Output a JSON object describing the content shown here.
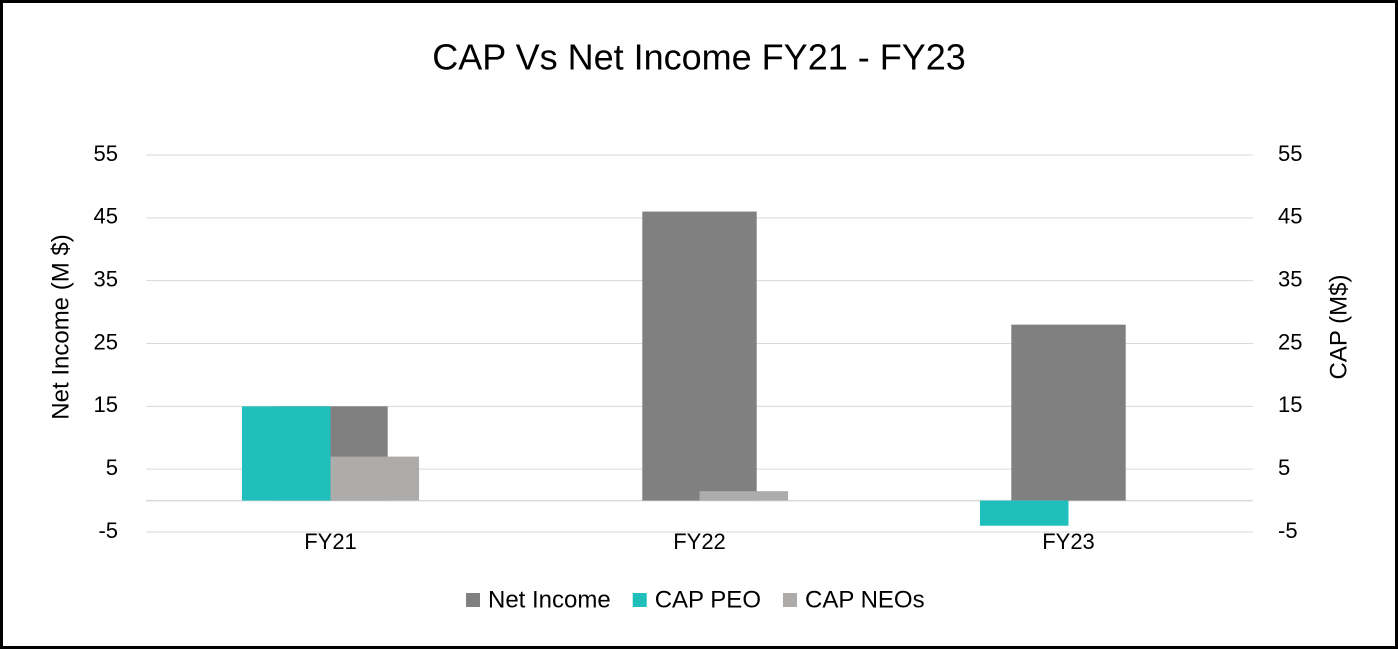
{
  "chart_data": {
    "type": "bar",
    "title": "CAP Vs Net Income FY21 - FY23",
    "y_label": "Net Income (M $)",
    "y2_label": "CAP (M$)",
    "categories": [
      "FY21",
      "FY22",
      "FY23"
    ],
    "series": [
      {
        "name": "Net Income",
        "color": "#808080",
        "values": [
          15,
          46,
          28
        ]
      },
      {
        "name": "CAP PEO",
        "color": "#1fbfbc",
        "values": [
          15,
          null,
          -4
        ],
        "axis": "y2"
      },
      {
        "name": "CAP NEOs",
        "color": "#aeabab",
        "values": [
          7,
          1.5,
          null
        ],
        "axis": "y2"
      }
    ],
    "ylim": [
      -5,
      55
    ],
    "yticks": [
      -5,
      5,
      15,
      25,
      35,
      45,
      55
    ],
    "y2lim": [
      -5,
      55
    ],
    "y2ticks": [
      -5,
      5,
      15,
      25,
      35,
      45,
      55
    ],
    "grid": true,
    "legend": "bottom"
  }
}
